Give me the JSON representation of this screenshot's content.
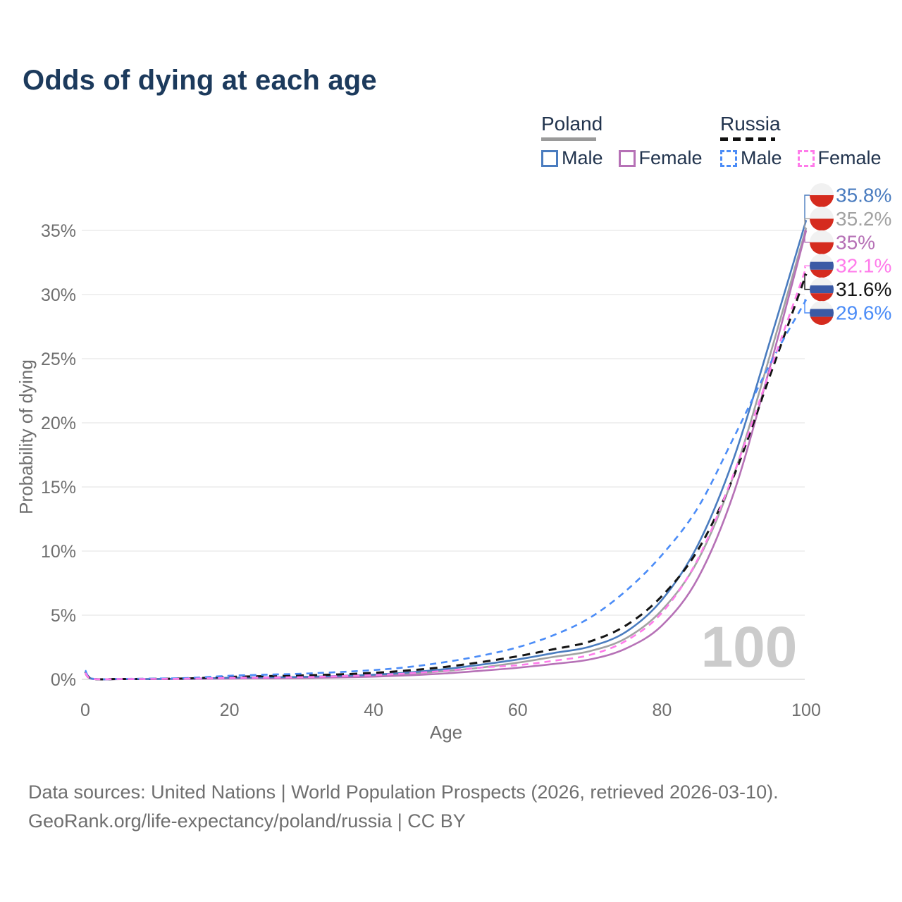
{
  "title": "Odds of dying at each age",
  "legend": {
    "groups": [
      {
        "label": "Poland",
        "line_style": "solid",
        "line_color": "#9a9a9a",
        "items": [
          {
            "label": "Male",
            "color": "#4a7cbf"
          },
          {
            "label": "Female",
            "color": "#b671b6"
          }
        ]
      },
      {
        "label": "Russia",
        "line_style": "dashed",
        "line_color": "#141414",
        "items": [
          {
            "label": "Male",
            "color": "#4b8cf7"
          },
          {
            "label": "Female",
            "color": "#ff7bea"
          }
        ]
      }
    ]
  },
  "watermark": "100",
  "footer": {
    "line1": "Data sources: United Nations | World Population Prospects (2026, retrieved 2026-03-10).",
    "line2": "GeoRank.org/life-expectancy/poland/russia | CC BY"
  },
  "chart_data": {
    "type": "line",
    "title": "Odds of dying at each age",
    "xlabel": "Age",
    "ylabel": "Probability of dying",
    "xlim": [
      0,
      100
    ],
    "ylim": [
      0,
      37
    ],
    "grid": true,
    "legend_position": "top-right",
    "x_ticks": [
      0,
      20,
      40,
      60,
      80,
      100
    ],
    "y_ticks": [
      0,
      5,
      10,
      15,
      20,
      25,
      30,
      35
    ],
    "y_tick_suffix": "%",
    "ages": [
      0,
      1,
      5,
      10,
      15,
      20,
      25,
      30,
      35,
      40,
      45,
      50,
      55,
      60,
      65,
      70,
      75,
      80,
      85,
      90,
      95,
      100
    ],
    "flag_colors": {
      "poland": [
        "#f1f1f1",
        "#d52b1e"
      ],
      "russia": [
        "#f1f1f1",
        "#3b5aa5",
        "#d52b1e"
      ]
    },
    "series": [
      {
        "name": "Poland Male",
        "flag": "poland",
        "color": "#4a7cbf",
        "dash": false,
        "z": 3,
        "end_label": "35.8%",
        "end_value": 35.8,
        "values": [
          0.55,
          0.04,
          0.02,
          0.03,
          0.06,
          0.12,
          0.16,
          0.19,
          0.26,
          0.36,
          0.54,
          0.8,
          1.15,
          1.55,
          2.05,
          2.55,
          3.7,
          6.2,
          10.5,
          17.3,
          26.4,
          35.8
        ]
      },
      {
        "name": "Poland Both sexes",
        "flag": "poland",
        "color": "#a2a2a2",
        "dash": false,
        "z": 1,
        "end_label": "35.2%",
        "end_value": 35.2,
        "values": [
          0.5,
          0.035,
          0.018,
          0.025,
          0.05,
          0.09,
          0.12,
          0.15,
          0.21,
          0.29,
          0.43,
          0.64,
          0.92,
          1.3,
          1.75,
          2.2,
          3.2,
          5.4,
          9.3,
          16.0,
          25.3,
          35.2
        ]
      },
      {
        "name": "Poland Female",
        "flag": "poland",
        "color": "#b671b6",
        "dash": false,
        "z": 2,
        "end_label": "35%",
        "end_value": 35.0,
        "values": [
          0.45,
          0.03,
          0.015,
          0.02,
          0.04,
          0.06,
          0.08,
          0.1,
          0.15,
          0.21,
          0.31,
          0.46,
          0.67,
          0.9,
          1.2,
          1.55,
          2.4,
          4.2,
          7.9,
          14.6,
          24.4,
          35.0
        ]
      },
      {
        "name": "Russia Female",
        "flag": "russia",
        "color": "#ff7bea",
        "dash": true,
        "z": 6,
        "end_label": "32.1%",
        "end_value": 32.1,
        "values": [
          0.5,
          0.04,
          0.025,
          0.03,
          0.06,
          0.11,
          0.14,
          0.17,
          0.24,
          0.33,
          0.47,
          0.67,
          0.92,
          1.1,
          1.45,
          1.9,
          3.0,
          5.2,
          9.4,
          16.1,
          24.1,
          32.1
        ]
      },
      {
        "name": "Russia Both sexes",
        "flag": "russia",
        "color": "#141414",
        "dash": true,
        "z": 4,
        "end_label": "31.6%",
        "end_value": 31.6,
        "values": [
          0.6,
          0.05,
          0.03,
          0.04,
          0.08,
          0.19,
          0.25,
          0.3,
          0.38,
          0.5,
          0.7,
          0.97,
          1.35,
          1.8,
          2.35,
          2.95,
          4.2,
          6.5,
          10.1,
          15.9,
          23.7,
          31.6
        ]
      },
      {
        "name": "Russia Male",
        "flag": "russia",
        "color": "#4b8cf7",
        "dash": true,
        "z": 5,
        "end_label": "29.6%",
        "end_value": 29.6,
        "values": [
          0.7,
          0.06,
          0.04,
          0.06,
          0.12,
          0.28,
          0.36,
          0.44,
          0.56,
          0.72,
          0.97,
          1.35,
          1.85,
          2.5,
          3.45,
          4.8,
          6.9,
          9.7,
          13.4,
          18.9,
          24.6,
          29.6
        ]
      }
    ]
  }
}
